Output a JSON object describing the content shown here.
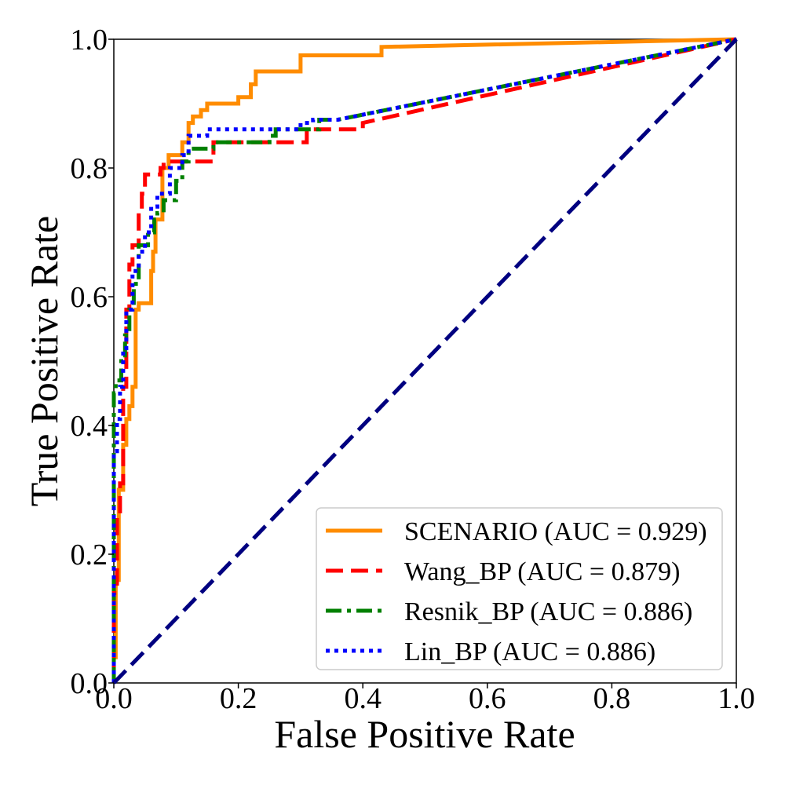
{
  "chart_data": {
    "type": "line",
    "xlabel": "False Positive Rate",
    "ylabel": "True Positive Rate",
    "xlim": [
      0.0,
      1.0
    ],
    "ylim": [
      0.0,
      1.0
    ],
    "xticks": [
      "0.0",
      "0.2",
      "0.4",
      "0.6",
      "0.8",
      "1.0"
    ],
    "yticks": [
      "0.0",
      "0.2",
      "0.4",
      "0.6",
      "0.8",
      "1.0"
    ],
    "grid": false,
    "legend_position": "lower-right",
    "series": [
      {
        "name": "SCENARIO (AUC = 0.929)",
        "color": "#ff8c00",
        "style": "solid",
        "x": [
          0.0,
          0.0,
          0.003,
          0.003,
          0.008,
          0.008,
          0.015,
          0.015,
          0.02,
          0.02,
          0.025,
          0.025,
          0.03,
          0.03,
          0.035,
          0.035,
          0.04,
          0.04,
          0.06,
          0.06,
          0.063,
          0.063,
          0.067,
          0.067,
          0.078,
          0.078,
          0.088,
          0.088,
          0.11,
          0.11,
          0.12,
          0.12,
          0.127,
          0.127,
          0.14,
          0.14,
          0.15,
          0.15,
          0.2,
          0.2,
          0.22,
          0.22,
          0.228,
          0.228,
          0.3,
          0.3,
          0.43,
          0.43,
          1.0
        ],
        "y": [
          0.0,
          0.04,
          0.04,
          0.16,
          0.16,
          0.3,
          0.3,
          0.37,
          0.37,
          0.41,
          0.41,
          0.43,
          0.43,
          0.46,
          0.46,
          0.58,
          0.58,
          0.59,
          0.59,
          0.64,
          0.64,
          0.67,
          0.67,
          0.72,
          0.72,
          0.8,
          0.8,
          0.82,
          0.82,
          0.84,
          0.84,
          0.87,
          0.87,
          0.88,
          0.88,
          0.89,
          0.89,
          0.9,
          0.9,
          0.91,
          0.91,
          0.93,
          0.93,
          0.95,
          0.95,
          0.975,
          0.975,
          0.988,
          1.0
        ]
      },
      {
        "name": "Wang_BP (AUC = 0.879)",
        "color": "#ff0000",
        "style": "dashed",
        "x": [
          0.0,
          0.0,
          0.005,
          0.005,
          0.01,
          0.01,
          0.015,
          0.015,
          0.02,
          0.02,
          0.025,
          0.025,
          0.03,
          0.03,
          0.04,
          0.04,
          0.045,
          0.045,
          0.05,
          0.05,
          0.075,
          0.075,
          0.08,
          0.08,
          0.1,
          0.1,
          0.16,
          0.16,
          0.28,
          0.28,
          0.31,
          0.31,
          0.4,
          0.4,
          1.0
        ],
        "y": [
          0.0,
          0.14,
          0.14,
          0.26,
          0.26,
          0.31,
          0.31,
          0.46,
          0.46,
          0.58,
          0.58,
          0.65,
          0.65,
          0.68,
          0.68,
          0.73,
          0.73,
          0.76,
          0.76,
          0.79,
          0.79,
          0.8,
          0.8,
          0.81,
          0.81,
          0.81,
          0.81,
          0.84,
          0.84,
          0.84,
          0.84,
          0.86,
          0.86,
          0.87,
          1.0
        ]
      },
      {
        "name": "Resnik_BP (AUC = 0.886)",
        "color": "#008000",
        "style": "dashdot",
        "x": [
          0.0,
          0.0,
          0.003,
          0.003,
          0.012,
          0.012,
          0.018,
          0.018,
          0.025,
          0.025,
          0.032,
          0.032,
          0.04,
          0.04,
          0.055,
          0.055,
          0.065,
          0.065,
          0.07,
          0.07,
          0.08,
          0.08,
          0.1,
          0.1,
          0.11,
          0.11,
          0.12,
          0.12,
          0.16,
          0.16,
          0.25,
          0.25,
          0.26,
          0.26,
          0.33,
          0.33,
          0.36,
          1.0
        ],
        "y": [
          0.0,
          0.45,
          0.45,
          0.47,
          0.47,
          0.5,
          0.5,
          0.54,
          0.54,
          0.58,
          0.58,
          0.62,
          0.62,
          0.68,
          0.68,
          0.7,
          0.7,
          0.72,
          0.72,
          0.73,
          0.73,
          0.75,
          0.75,
          0.78,
          0.78,
          0.81,
          0.81,
          0.83,
          0.83,
          0.84,
          0.84,
          0.85,
          0.85,
          0.86,
          0.86,
          0.875,
          0.875,
          1.0
        ]
      },
      {
        "name": "Lin_BP (AUC = 0.886)",
        "color": "#0000ff",
        "style": "dotted",
        "x": [
          0.0,
          0.0,
          0.005,
          0.005,
          0.01,
          0.01,
          0.015,
          0.015,
          0.02,
          0.02,
          0.03,
          0.03,
          0.04,
          0.04,
          0.05,
          0.05,
          0.06,
          0.06,
          0.07,
          0.07,
          0.09,
          0.09,
          0.11,
          0.11,
          0.12,
          0.12,
          0.15,
          0.15,
          0.3,
          0.3,
          0.32,
          0.32,
          0.36,
          1.0
        ],
        "y": [
          0.0,
          0.36,
          0.36,
          0.41,
          0.41,
          0.46,
          0.46,
          0.52,
          0.52,
          0.58,
          0.58,
          0.64,
          0.64,
          0.67,
          0.67,
          0.7,
          0.7,
          0.74,
          0.74,
          0.76,
          0.76,
          0.8,
          0.8,
          0.82,
          0.82,
          0.85,
          0.85,
          0.86,
          0.86,
          0.87,
          0.87,
          0.875,
          0.875,
          1.0
        ]
      },
      {
        "name": "",
        "color": "#000080",
        "style": "dashed",
        "x": [
          0.0,
          1.0
        ],
        "y": [
          0.0,
          1.0
        ]
      }
    ]
  }
}
